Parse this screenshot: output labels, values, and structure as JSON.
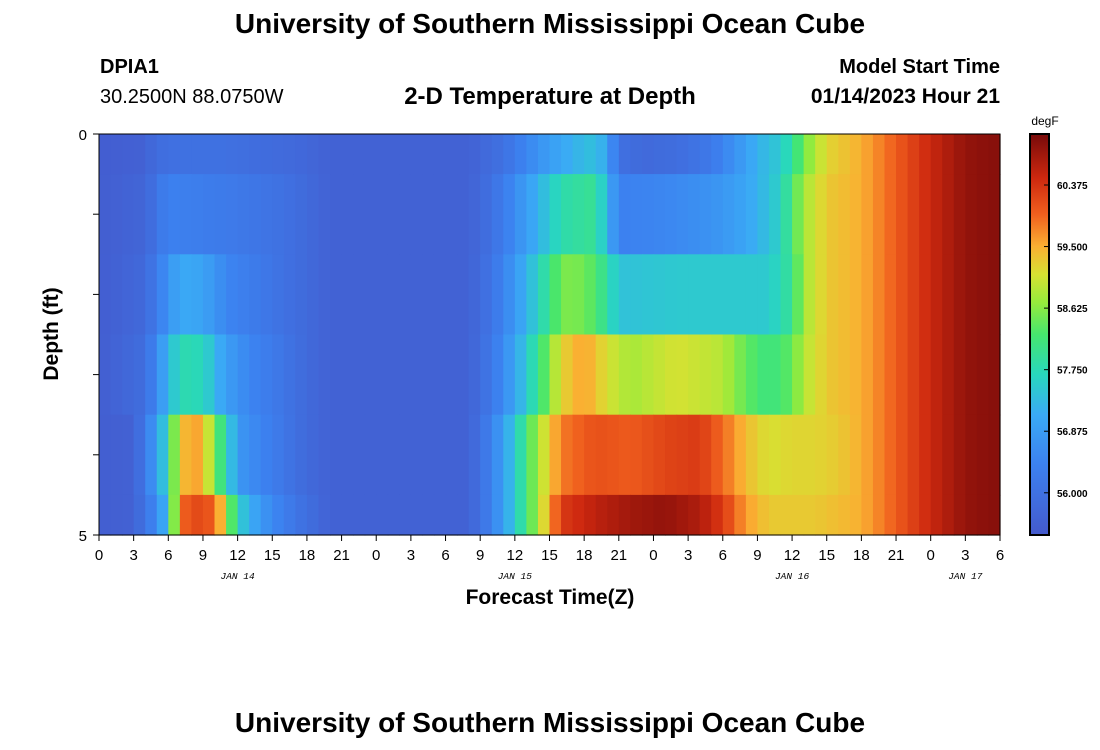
{
  "page": {
    "title": "University of Southern Mississippi Ocean Cube",
    "title_repeat": "University of Southern Mississippi Ocean Cube",
    "station_id": "DPIA1",
    "location": "30.2500N  88.0750W",
    "plot_title": "2-D Temperature at Depth",
    "model_start_label": "Model Start Time",
    "model_start_value": "01/14/2023 Hour 21"
  },
  "chart_data": {
    "type": "heatmap",
    "title": "2-D Temperature at Depth",
    "xlabel": "Forecast Time(Z)",
    "ylabel": "Depth (ft)",
    "ylim": [
      0,
      5
    ],
    "y_ticks": [
      "0",
      "5"
    ],
    "x_hours": [
      0,
      78
    ],
    "x_tick_labels": [
      "0",
      "3",
      "6",
      "9",
      "12",
      "15",
      "18",
      "21",
      "0",
      "3",
      "6",
      "9",
      "12",
      "15",
      "18",
      "21",
      "0",
      "3",
      "6",
      "9",
      "12",
      "15",
      "18",
      "21",
      "0",
      "3",
      "6"
    ],
    "day_labels": [
      {
        "hour": 12,
        "label": "JAN 14"
      },
      {
        "hour": 36,
        "label": "JAN 15"
      },
      {
        "hour": 60,
        "label": "JAN 16"
      },
      {
        "hour": 75,
        "label": "JAN 17"
      }
    ],
    "colorbar": {
      "unit": "degF",
      "min": 55.4,
      "max": 61.1,
      "ticks": [
        "56.000",
        "56.875",
        "57.750",
        "58.625",
        "59.500",
        "60.375"
      ],
      "tick_values": [
        56.0,
        56.875,
        57.75,
        58.625,
        59.5,
        60.375
      ]
    },
    "depth_layers": [
      "0.0-0.5",
      "0.5-1.5",
      "1.5-2.5",
      "2.5-3.5",
      "3.5-4.5",
      "4.5-5.0"
    ],
    "layer_series": [
      {
        "name": "0.0-0.5 ft",
        "keys": [
          [
            0,
            55.5
          ],
          [
            4,
            55.6
          ],
          [
            5,
            55.9
          ],
          [
            7,
            56.0
          ],
          [
            10,
            56.0
          ],
          [
            17,
            55.8
          ],
          [
            20,
            55.6
          ],
          [
            32,
            55.6
          ],
          [
            35,
            56.0
          ],
          [
            37,
            56.5
          ],
          [
            39,
            56.9
          ],
          [
            41,
            57.2
          ],
          [
            43,
            57.4
          ],
          [
            44,
            57.0
          ],
          [
            45,
            56.0
          ],
          [
            47,
            55.8
          ],
          [
            50,
            55.9
          ],
          [
            53,
            56.2
          ],
          [
            55,
            56.7
          ],
          [
            57,
            57.2
          ],
          [
            59,
            57.5
          ],
          [
            60,
            57.9
          ],
          [
            61,
            58.5
          ],
          [
            63,
            59.2
          ],
          [
            66,
            59.5
          ],
          [
            69,
            60.0
          ],
          [
            72,
            60.5
          ],
          [
            75,
            60.9
          ],
          [
            78,
            61.0
          ]
        ]
      },
      {
        "name": "0.5-1.5 ft",
        "keys": [
          [
            0,
            55.5
          ],
          [
            4,
            55.7
          ],
          [
            5,
            56.1
          ],
          [
            6,
            56.4
          ],
          [
            9,
            56.3
          ],
          [
            12,
            56.2
          ],
          [
            16,
            56.0
          ],
          [
            18,
            55.8
          ],
          [
            20,
            55.6
          ],
          [
            32,
            55.6
          ],
          [
            34,
            56.0
          ],
          [
            36,
            56.6
          ],
          [
            38,
            57.2
          ],
          [
            40,
            57.8
          ],
          [
            43,
            58.0
          ],
          [
            45,
            56.4
          ],
          [
            49,
            56.5
          ],
          [
            53,
            56.7
          ],
          [
            55,
            56.9
          ],
          [
            57,
            57.2
          ],
          [
            59,
            57.6
          ],
          [
            60,
            58.2
          ],
          [
            61,
            58.8
          ],
          [
            63,
            59.3
          ],
          [
            66,
            59.5
          ],
          [
            69,
            60.0
          ],
          [
            72,
            60.5
          ],
          [
            75,
            60.9
          ],
          [
            78,
            61.0
          ]
        ]
      },
      {
        "name": "1.5-2.5 ft",
        "keys": [
          [
            0,
            55.5
          ],
          [
            4,
            55.8
          ],
          [
            5,
            56.3
          ],
          [
            6,
            56.7
          ],
          [
            7,
            57.1
          ],
          [
            9,
            57.0
          ],
          [
            11,
            56.5
          ],
          [
            14,
            56.2
          ],
          [
            16,
            56.0
          ],
          [
            18,
            55.8
          ],
          [
            20,
            55.6
          ],
          [
            32,
            55.6
          ],
          [
            34,
            56.1
          ],
          [
            36,
            56.8
          ],
          [
            38,
            57.6
          ],
          [
            40,
            58.5
          ],
          [
            41,
            58.6
          ],
          [
            43,
            58.3
          ],
          [
            45,
            57.4
          ],
          [
            50,
            57.5
          ],
          [
            55,
            57.5
          ],
          [
            58,
            57.5
          ],
          [
            60,
            58.0
          ],
          [
            61,
            58.8
          ],
          [
            63,
            59.3
          ],
          [
            66,
            59.5
          ],
          [
            69,
            60.0
          ],
          [
            72,
            60.5
          ],
          [
            75,
            60.9
          ],
          [
            78,
            61.0
          ]
        ]
      },
      {
        "name": "2.5-3.5 ft",
        "keys": [
          [
            0,
            55.5
          ],
          [
            4,
            55.9
          ],
          [
            5,
            56.6
          ],
          [
            6,
            57.2
          ],
          [
            7,
            57.8
          ],
          [
            9,
            57.7
          ],
          [
            11,
            56.9
          ],
          [
            13,
            56.5
          ],
          [
            16,
            56.1
          ],
          [
            18,
            55.8
          ],
          [
            20,
            55.6
          ],
          [
            32,
            55.6
          ],
          [
            34,
            56.2
          ],
          [
            36,
            57.0
          ],
          [
            38,
            58.0
          ],
          [
            40,
            59.2
          ],
          [
            42,
            59.6
          ],
          [
            44,
            59.1
          ],
          [
            46,
            58.8
          ],
          [
            50,
            59.1
          ],
          [
            54,
            58.9
          ],
          [
            56,
            58.4
          ],
          [
            58,
            58.1
          ],
          [
            60,
            58.4
          ],
          [
            61,
            58.9
          ],
          [
            63,
            59.3
          ],
          [
            66,
            59.5
          ],
          [
            69,
            60.0
          ],
          [
            72,
            60.5
          ],
          [
            75,
            60.9
          ],
          [
            78,
            61.0
          ]
        ]
      },
      {
        "name": "3.5-4.5 ft",
        "keys": [
          [
            0,
            55.5
          ],
          [
            3,
            55.6
          ],
          [
            5,
            56.9
          ],
          [
            6,
            57.8
          ],
          [
            7,
            59.3
          ],
          [
            8,
            59.6
          ],
          [
            9,
            59.5
          ],
          [
            10,
            58.5
          ],
          [
            11,
            57.8
          ],
          [
            12,
            56.8
          ],
          [
            15,
            56.3
          ],
          [
            18,
            55.8
          ],
          [
            20,
            55.6
          ],
          [
            32,
            55.6
          ],
          [
            34,
            56.4
          ],
          [
            36,
            57.5
          ],
          [
            38,
            58.8
          ],
          [
            40,
            59.8
          ],
          [
            43,
            60.1
          ],
          [
            46,
            60.0
          ],
          [
            49,
            60.2
          ],
          [
            52,
            60.3
          ],
          [
            54,
            59.9
          ],
          [
            56,
            59.4
          ],
          [
            58,
            59.1
          ],
          [
            60,
            59.2
          ],
          [
            62,
            59.2
          ],
          [
            64,
            59.3
          ],
          [
            66,
            59.5
          ],
          [
            69,
            60.0
          ],
          [
            72,
            60.5
          ],
          [
            75,
            60.9
          ],
          [
            78,
            61.0
          ]
        ]
      },
      {
        "name": "4.5-5.0 ft",
        "keys": [
          [
            0,
            55.5
          ],
          [
            3,
            55.6
          ],
          [
            5,
            56.6
          ],
          [
            6,
            57.4
          ],
          [
            7,
            59.8
          ],
          [
            8,
            60.2
          ],
          [
            10,
            60.0
          ],
          [
            11,
            59.0
          ],
          [
            12,
            57.6
          ],
          [
            14,
            56.8
          ],
          [
            17,
            56.1
          ],
          [
            20,
            55.6
          ],
          [
            32,
            55.6
          ],
          [
            34,
            56.4
          ],
          [
            36,
            57.5
          ],
          [
            38,
            58.8
          ],
          [
            40,
            60.3
          ],
          [
            43,
            60.6
          ],
          [
            46,
            60.8
          ],
          [
            49,
            60.9
          ],
          [
            52,
            60.7
          ],
          [
            54,
            60.3
          ],
          [
            56,
            59.6
          ],
          [
            58,
            59.3
          ],
          [
            60,
            59.3
          ],
          [
            62,
            59.3
          ],
          [
            64,
            59.4
          ],
          [
            66,
            59.5
          ],
          [
            69,
            60.0
          ],
          [
            72,
            60.5
          ],
          [
            75,
            60.9
          ],
          [
            78,
            61.0
          ]
        ]
      }
    ]
  }
}
